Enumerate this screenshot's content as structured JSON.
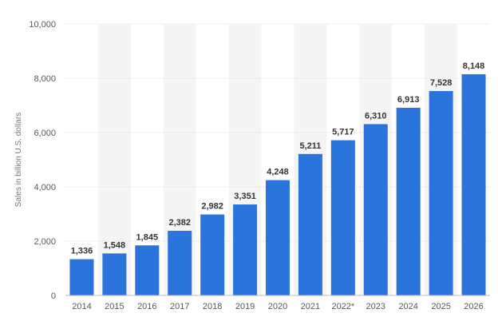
{
  "chart_data": {
    "type": "bar",
    "title": "",
    "xlabel": "",
    "ylabel": "Sales in billion U.S. dollars",
    "categories": [
      "2014",
      "2015",
      "2016",
      "2017",
      "2018",
      "2019",
      "2020",
      "2021",
      "2022*",
      "2023",
      "2024",
      "2025",
      "2026"
    ],
    "values": [
      1336,
      1548,
      1845,
      2382,
      2982,
      3351,
      4248,
      5211,
      5717,
      6310,
      6913,
      7528,
      8148
    ],
    "value_labels": [
      "1,336",
      "1,548",
      "1,845",
      "2,382",
      "2,982",
      "3,351",
      "4,248",
      "5,211",
      "5,717",
      "6,310",
      "6,913",
      "7,528",
      "8,148"
    ],
    "yticks": [
      0,
      2000,
      4000,
      6000,
      8000,
      10000
    ],
    "ytick_labels": [
      "0",
      "2,000",
      "4,000",
      "6,000",
      "8,000",
      "10,000"
    ],
    "ylim": [
      0,
      10000
    ],
    "grid": true,
    "legend": "none",
    "bar_color": "#2a74dc",
    "band_color": "#f5f5f5",
    "grid_color": "#e2e2e2",
    "axis_color": "#bdbdbd"
  }
}
